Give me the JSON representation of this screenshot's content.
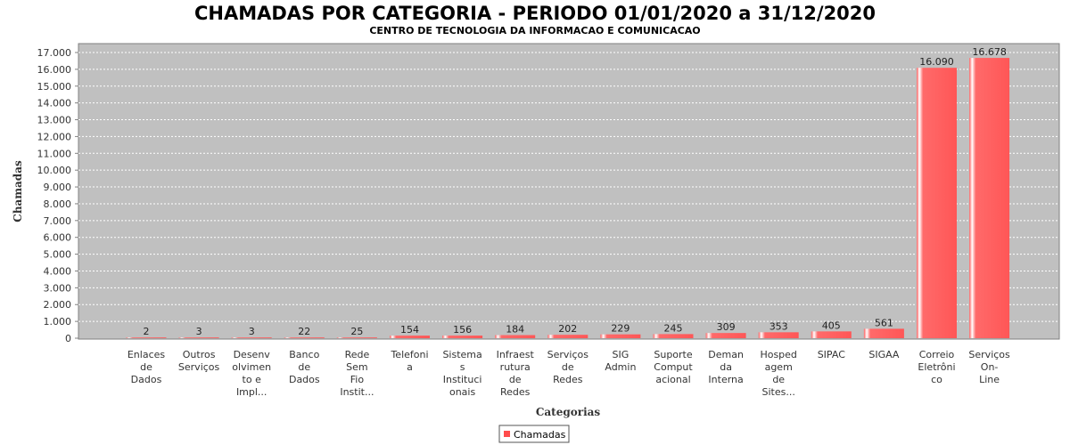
{
  "chart_data": {
    "type": "bar",
    "title": "CHAMADAS POR CATEGORIA - PERIODO 01/01/2020 a 31/12/2020",
    "subtitle": "CENTRO DE TECNOLOGIA DA INFORMACAO E COMUNICACAO",
    "xlabel": "Categorias",
    "ylabel": "Chamadas",
    "ylim": [
      0,
      17000
    ],
    "yticks": [
      0,
      1000,
      2000,
      3000,
      4000,
      5000,
      6000,
      7000,
      8000,
      9000,
      10000,
      11000,
      12000,
      13000,
      14000,
      15000,
      16000,
      17000
    ],
    "ytick_labels": [
      "0",
      "1.000",
      "2.000",
      "3.000",
      "4.000",
      "5.000",
      "6.000",
      "7.000",
      "8.000",
      "9.000",
      "10.000",
      "11.000",
      "12.000",
      "13.000",
      "14.000",
      "15.000",
      "16.000",
      "17.000"
    ],
    "grid": true,
    "legend_position": "bottom-center",
    "colors": {
      "bar": "#ff5b5b",
      "plot_bg": "#c0c0c0"
    },
    "categories": [
      [
        "Enlaces",
        "de",
        "Dados"
      ],
      [
        "Outros",
        "Serviços"
      ],
      [
        "Desenv",
        "olvimen",
        "to e",
        "Impl..."
      ],
      [
        "Banco",
        "de",
        "Dados"
      ],
      [
        "Rede",
        "Sem",
        "Fio",
        "Instit..."
      ],
      [
        "Telefoni",
        "a"
      ],
      [
        "Sistema",
        "s",
        "Instituci",
        "onais"
      ],
      [
        "Infraest",
        "rutura",
        "de",
        "Redes"
      ],
      [
        "Serviços",
        "de",
        "Redes"
      ],
      [
        "SIG",
        "Admin"
      ],
      [
        "Suporte",
        "",
        "Comput",
        "acional"
      ],
      [
        "Deman",
        "da",
        "Interna"
      ],
      [
        "Hosped",
        "agem",
        "de",
        "Sites..."
      ],
      [
        "SIPAC"
      ],
      [
        "SIGAA"
      ],
      [
        "Correio",
        "Eletrôni",
        "co"
      ],
      [
        "Serviços",
        "On-",
        "Line"
      ]
    ],
    "values": [
      2,
      3,
      3,
      22,
      25,
      154,
      156,
      184,
      202,
      229,
      245,
      309,
      353,
      405,
      561,
      16090,
      16678
    ],
    "value_labels": [
      "2",
      "3",
      "3",
      "22",
      "25",
      "154",
      "156",
      "184",
      "202",
      "229",
      "245",
      "309",
      "353",
      "405",
      "561",
      "16.090",
      "16.678"
    ],
    "series": [
      {
        "name": "Chamadas",
        "values": [
          2,
          3,
          3,
          22,
          25,
          154,
          156,
          184,
          202,
          229,
          245,
          309,
          353,
          405,
          561,
          16090,
          16678
        ]
      }
    ]
  }
}
